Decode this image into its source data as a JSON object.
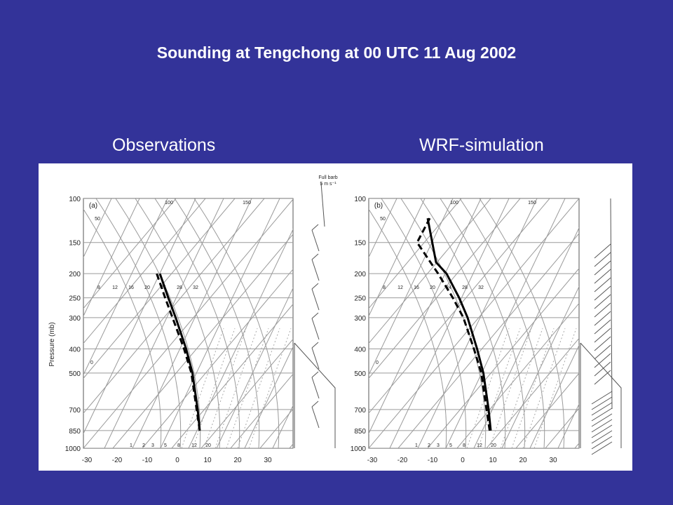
{
  "title": "Sounding at Tengchong at 00 UTC 11 Aug 2002",
  "captions": {
    "left": "Observations",
    "right": "WRF-simulation"
  },
  "colors": {
    "background": "#333399",
    "text": "#ffffff",
    "grid": "#9a9a9a",
    "profile": "#000000"
  },
  "chart_data": [
    {
      "type": "line",
      "panel_label": "(a)",
      "ylabel": "Pressure (mb)",
      "y_scale": "log",
      "y_ticks": [
        "100",
        "150",
        "200",
        "250",
        "300",
        "400",
        "500",
        "700",
        "850",
        "1000"
      ],
      "x_ticks": [
        "-30",
        "-20",
        "-10",
        "0",
        "10",
        "20",
        "30"
      ],
      "ylim": [
        1000,
        100
      ],
      "isotherm_labels_top": [
        "100",
        "150"
      ],
      "isotherm_label_50": "50",
      "mixing_ratio_labels": [
        "8",
        "12",
        "16",
        "20",
        "24",
        "28",
        "32"
      ],
      "dry_adiabat_label": "0",
      "bottom_labels": [
        "1",
        "2",
        "3",
        "5",
        "8",
        "12",
        "20"
      ],
      "barb_key": [
        "Full barb",
        "5 m s⁻¹"
      ],
      "series": [
        {
          "style": "solid",
          "points": [
            [
              850,
              0.555
            ],
            [
              700,
              0.545
            ],
            [
              500,
              0.52
            ],
            [
              400,
              0.49
            ],
            [
              300,
              0.44
            ],
            [
              250,
              0.405
            ],
            [
              200,
              0.365
            ]
          ]
        },
        {
          "style": "dashed",
          "points": [
            [
              850,
              0.555
            ],
            [
              700,
              0.54
            ],
            [
              500,
              0.515
            ],
            [
              400,
              0.48
            ],
            [
              300,
              0.425
            ],
            [
              250,
              0.39
            ],
            [
              200,
              0.35
            ]
          ]
        }
      ]
    },
    {
      "type": "line",
      "panel_label": "(b)",
      "ylabel": "",
      "y_scale": "log",
      "y_ticks": [
        "100",
        "150",
        "200",
        "250",
        "300",
        "400",
        "500",
        "700",
        "850",
        "1000"
      ],
      "x_ticks": [
        "-30",
        "-20",
        "-10",
        "0",
        "10",
        "20",
        "30"
      ],
      "ylim": [
        1000,
        100
      ],
      "isotherm_labels_top": [
        "100",
        "150"
      ],
      "isotherm_label_50": "50",
      "mixing_ratio_labels": [
        "8",
        "12",
        "16",
        "20",
        "24",
        "28",
        "32"
      ],
      "dry_adiabat_label": "0",
      "bottom_labels": [
        "1",
        "2",
        "3",
        "5",
        "8",
        "12",
        "20"
      ],
      "series": [
        {
          "style": "solid",
          "points": [
            [
              850,
              0.58
            ],
            [
              700,
              0.57
            ],
            [
              500,
              0.545
            ],
            [
              400,
              0.515
            ],
            [
              300,
              0.47
            ],
            [
              250,
              0.43
            ],
            [
              200,
              0.37
            ],
            [
              180,
              0.32
            ],
            [
              120,
              0.28
            ]
          ]
        },
        {
          "style": "dashed",
          "points": [
            [
              850,
              0.575
            ],
            [
              700,
              0.56
            ],
            [
              500,
              0.535
            ],
            [
              400,
              0.5
            ],
            [
              300,
              0.45
            ],
            [
              250,
              0.4
            ],
            [
              200,
              0.33
            ],
            [
              150,
              0.23
            ],
            [
              120,
              0.29
            ]
          ]
        }
      ]
    }
  ]
}
